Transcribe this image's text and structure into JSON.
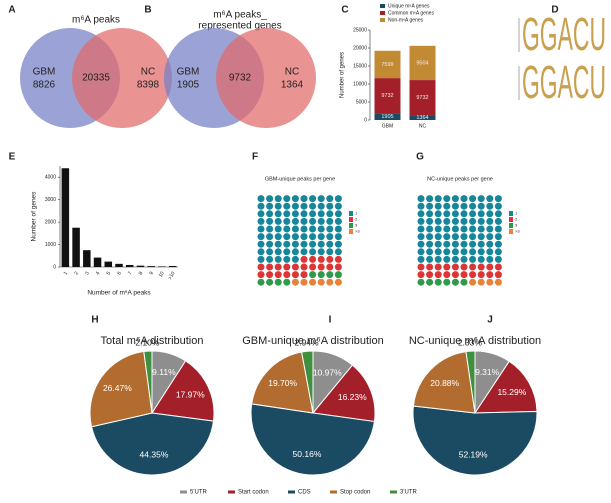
{
  "chart_data": [
    {
      "type": "venn",
      "panel": "A",
      "title": [
        "m⁶A peaks"
      ],
      "sets": [
        "GBM",
        "NC"
      ],
      "colors": [
        "#7480c6",
        "#e26a6a"
      ],
      "values": [
        8826,
        20335,
        8398
      ]
    },
    {
      "type": "venn",
      "panel": "B",
      "title": [
        "m⁶A peaks_",
        "represented genes"
      ],
      "sets": [
        "GBM",
        "NC"
      ],
      "colors": [
        "#7480c6",
        "#e26a6a"
      ],
      "values": [
        1905,
        9732,
        1364
      ]
    },
    {
      "type": "stacked-bar",
      "panel": "C",
      "ylabel": "Number of genes",
      "categories": [
        "GBM",
        "NC"
      ],
      "series": [
        {
          "name": "Unique m⁶A genes",
          "color": "#1b4b63",
          "values": [
            1905,
            1364
          ]
        },
        {
          "name": "Common m⁶A genes",
          "color": "#a3202a",
          "values": [
            9732,
            9732
          ]
        },
        {
          "name": "Non-m⁶A genes",
          "color": "#c38a34",
          "values": [
            7599,
            9504
          ]
        }
      ],
      "ylim": [
        0,
        25000
      ],
      "yticks": [
        0,
        5000,
        10000,
        15000,
        20000,
        25000
      ],
      "legend": "top"
    },
    {
      "type": "logo",
      "panel": "D",
      "sequences": [
        "GGACU",
        "GGACU"
      ],
      "color": "#c9a04e"
    },
    {
      "type": "bar",
      "panel": "E",
      "ylabel": "Number of genes",
      "xlabel": "Number of m⁶A peaks",
      "categories": [
        "1",
        "2",
        "3",
        "4",
        "5",
        "6",
        "7",
        "8",
        "9",
        "10",
        ">10"
      ],
      "values": [
        4400,
        1750,
        750,
        420,
        240,
        140,
        90,
        60,
        40,
        25,
        45
      ],
      "color": "#111111",
      "ylim": [
        0,
        4500
      ],
      "yticks": [
        0,
        1000,
        2000,
        3000,
        4000
      ]
    },
    {
      "type": "waffle",
      "panel": "F",
      "title": "GBM-unique peaks per gene",
      "columns": 10,
      "categories": [
        "1",
        "2",
        "3",
        ">3"
      ],
      "values": [
        85,
        21,
        8,
        6
      ],
      "colors": [
        "#16869a",
        "#dd3535",
        "#2f9a4a",
        "#e8823a"
      ]
    },
    {
      "type": "waffle",
      "panel": "G",
      "title": "NC-unique peaks per gene",
      "columns": 10,
      "categories": [
        "1",
        "2",
        "3",
        ">3"
      ],
      "values": [
        90,
        20,
        6,
        4
      ],
      "colors": [
        "#16869a",
        "#dd3535",
        "#2f9a4a",
        "#e8823a"
      ]
    },
    {
      "type": "pie",
      "panel": "H",
      "title": "Total m⁶A distribution",
      "categories": [
        "5'UTR",
        "Start codon",
        "CDS",
        "Stop codon",
        "3'UTR"
      ],
      "values": [
        9.11,
        17.97,
        44.35,
        26.47,
        2.1
      ],
      "value_labels": [
        "9.11%",
        "17.97%",
        "44.35%",
        "26.47%",
        "2.10%"
      ],
      "colors": [
        "#8e8e8e",
        "#a3202a",
        "#1b4b63",
        "#b36c30",
        "#3f8f3f"
      ],
      "legend": "bottom"
    },
    {
      "type": "pie",
      "panel": "I",
      "title": "GBM-unique m⁶A distribution",
      "categories": [
        "5'UTR",
        "Start codon",
        "CDS",
        "Stop codon",
        "3'UTR"
      ],
      "values": [
        10.97,
        16.23,
        50.16,
        19.7,
        2.94
      ],
      "value_labels": [
        "10.97%",
        "16.23%",
        "50.16%",
        "19.70%",
        "2.94%"
      ],
      "colors": [
        "#8e8e8e",
        "#a3202a",
        "#1b4b63",
        "#b36c30",
        "#3f8f3f"
      ]
    },
    {
      "type": "pie",
      "panel": "J",
      "title": "NC-unique m⁶A distribution",
      "categories": [
        "5'UTR",
        "Start codon",
        "CDS",
        "Stop codon",
        "3'UTR"
      ],
      "values": [
        9.31,
        15.29,
        52.19,
        20.88,
        2.33
      ],
      "value_labels": [
        "9.31%",
        "15.29%",
        "52.19%",
        "20.88%",
        "2.33%"
      ],
      "colors": [
        "#8e8e8e",
        "#a3202a",
        "#1b4b63",
        "#b36c30",
        "#3f8f3f"
      ]
    }
  ]
}
